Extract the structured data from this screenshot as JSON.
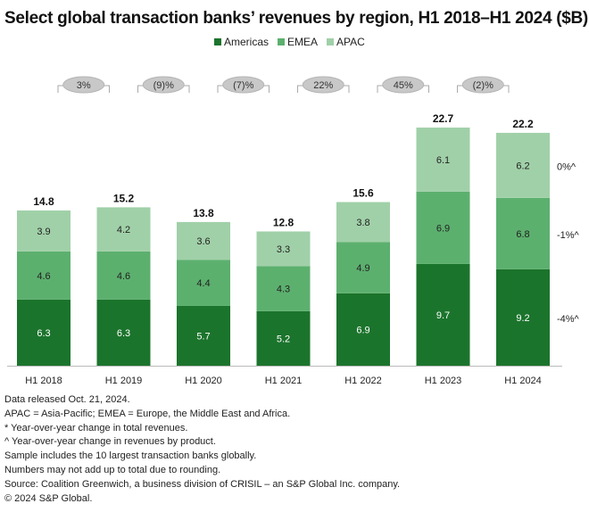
{
  "chart_data": {
    "type": "bar",
    "stacked": true,
    "title": "Select global transaction banks’ revenues by region, H1 2018–H1 2024 ($B)",
    "categories": [
      "H1 2018",
      "H1 2019",
      "H1 2020",
      "H1 2021",
      "H1 2022",
      "H1 2023",
      "H1 2024"
    ],
    "series": [
      {
        "name": "Americas",
        "color": "#1b742c",
        "values": [
          6.3,
          6.3,
          5.7,
          5.2,
          6.9,
          9.7,
          9.2
        ]
      },
      {
        "name": "EMEA",
        "color": "#5cb06e",
        "values": [
          4.6,
          4.6,
          4.4,
          4.3,
          4.9,
          6.9,
          6.8
        ]
      },
      {
        "name": "APAC",
        "color": "#a0d0a8",
        "values": [
          3.9,
          4.2,
          3.6,
          3.3,
          3.8,
          6.1,
          6.2
        ]
      }
    ],
    "totals": [
      "14.8",
      "15.2",
      "13.8",
      "12.8",
      "15.6",
      "22.7",
      "22.2"
    ],
    "yoy_total_change": [
      "3%",
      "(9)%",
      "(7)%",
      "22%",
      "45%",
      "(2)%"
    ],
    "yoy_product_change": {
      "Americas": "-4%^",
      "EMEA": "-1%^",
      "APAC": "0%^"
    },
    "ylim": [
      0,
      24
    ],
    "legend_position": "top",
    "grid": false
  },
  "notes": [
    "Data released Oct. 21, 2024.",
    "APAC = Asia-Pacific; EMEA = Europe, the Middle East and Africa.",
    "* Year-over-year change in total revenues.",
    "^ Year-over-year change in revenues by product.",
    "Sample includes the 10 largest transaction banks globally.",
    "Numbers may not add up to total due to rounding.",
    "Source: Coalition Greenwich, a business division of CRISIL – an S&P Global Inc. company.",
    "© 2024 S&P Global."
  ]
}
